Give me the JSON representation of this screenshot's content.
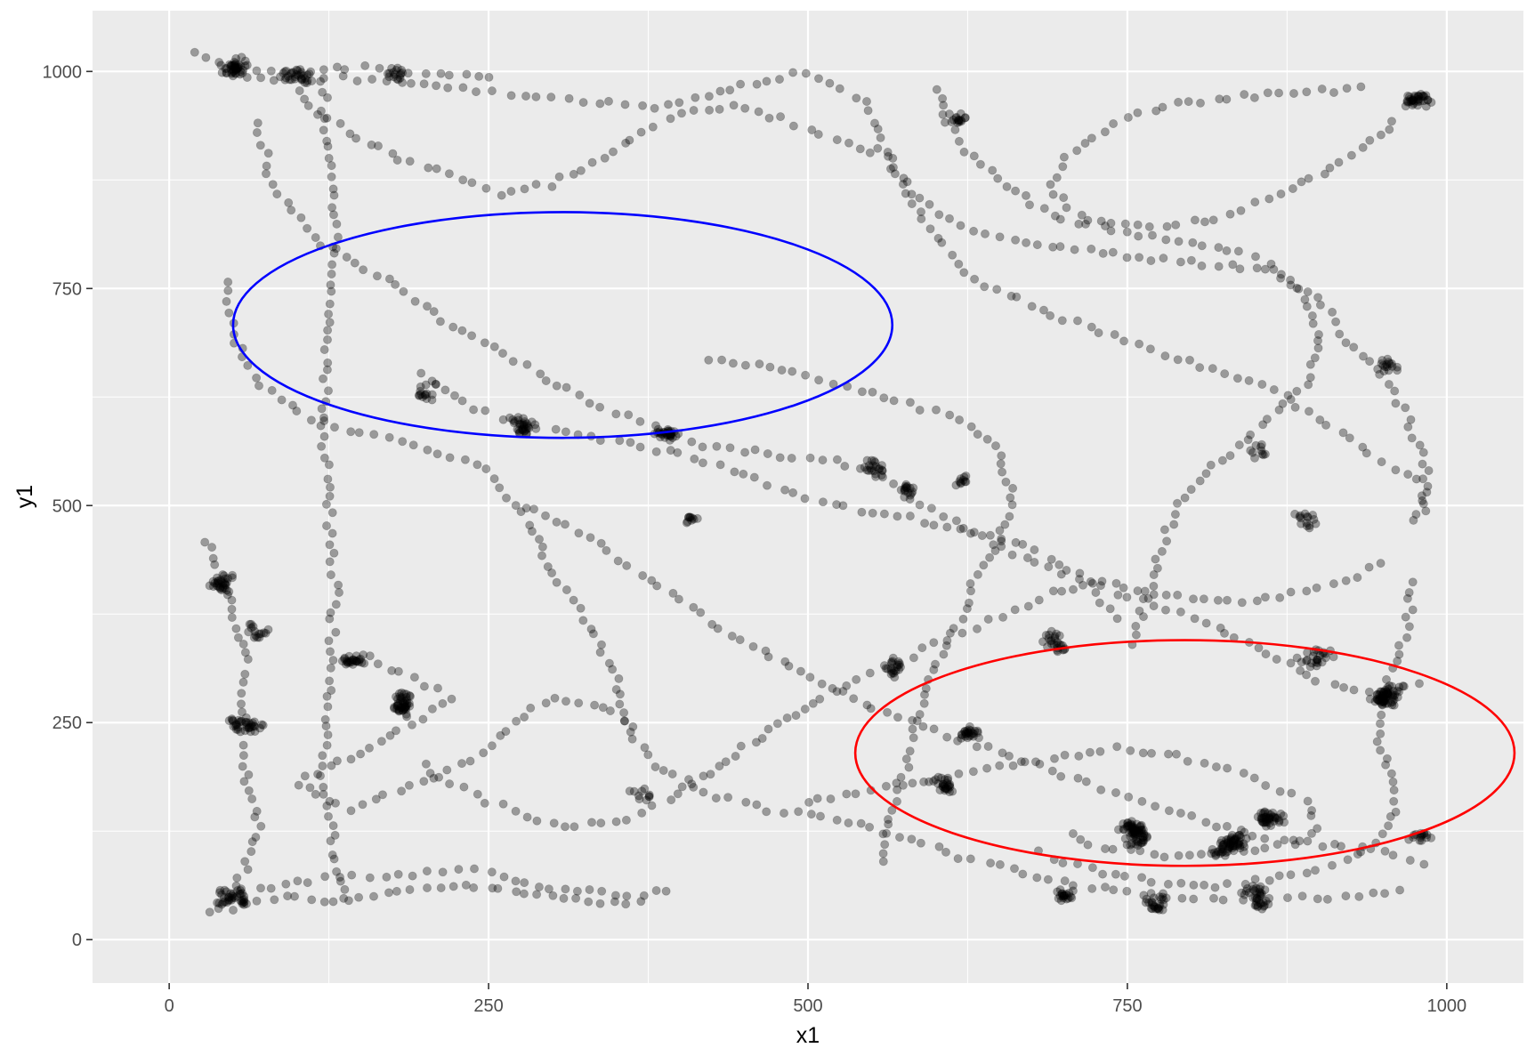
{
  "chart_data": {
    "type": "scatter",
    "title": "",
    "xlabel": "x1",
    "ylabel": "y1",
    "xlim": [
      -60,
      1060
    ],
    "ylim": [
      -50,
      1070
    ],
    "xticks": [
      0,
      250,
      500,
      750,
      1000
    ],
    "yticks": [
      0,
      250,
      500,
      750,
      1000
    ],
    "xtick_labels": [
      "0",
      "250",
      "500",
      "750",
      "1000"
    ],
    "ytick_labels": [
      "0",
      "250",
      "500",
      "750",
      "1000"
    ],
    "grid": true,
    "legend": "none",
    "colors": {
      "panel_bg": "#ebebeb",
      "grid": "#ffffff",
      "points": "#000000",
      "ellipse_1": "#0000ff",
      "ellipse_2": "#ff0000"
    },
    "point_alpha": 0.35,
    "annotations": [
      {
        "shape": "ellipse",
        "color": "blue",
        "cx": 308,
        "cy": 708,
        "rx": 258,
        "ry": 130
      },
      {
        "shape": "ellipse",
        "color": "red",
        "cx": 795,
        "cy": 215,
        "rx": 258,
        "ry": 130
      }
    ],
    "path_waypoints": [
      [
        [
          20,
          1020
        ],
        [
          60,
          1005
        ],
        [
          110,
          995
        ],
        [
          170,
          990
        ],
        [
          230,
          980
        ],
        [
          300,
          970
        ],
        [
          380,
          960
        ],
        [
          450,
          985
        ],
        [
          500,
          1000
        ],
        [
          545,
          965
        ],
        [
          560,
          900
        ],
        [
          590,
          830
        ],
        [
          630,
          760
        ],
        [
          700,
          715
        ],
        [
          790,
          670
        ],
        [
          855,
          640
        ],
        [
          900,
          600
        ],
        [
          940,
          560
        ],
        [
          985,
          520
        ],
        [
          970,
          470
        ]
      ],
      [
        [
          70,
          940
        ],
        [
          80,
          870
        ],
        [
          120,
          800
        ],
        [
          170,
          760
        ],
        [
          230,
          700
        ],
        [
          280,
          660
        ],
        [
          330,
          620
        ],
        [
          380,
          590
        ],
        [
          420,
          570
        ],
        [
          470,
          560
        ],
        [
          520,
          550
        ],
        [
          560,
          530
        ],
        [
          590,
          500
        ],
        [
          630,
          470
        ],
        [
          670,
          440
        ],
        [
          700,
          420
        ],
        [
          740,
          400
        ],
        [
          780,
          380
        ],
        [
          820,
          360
        ],
        [
          860,
          330
        ],
        [
          900,
          300
        ],
        [
          950,
          280
        ],
        [
          985,
          300
        ]
      ],
      [
        [
          120,
          990
        ],
        [
          125,
          900
        ],
        [
          130,
          800
        ],
        [
          125,
          700
        ],
        [
          120,
          600
        ],
        [
          125,
          500
        ],
        [
          130,
          400
        ],
        [
          125,
          300
        ],
        [
          120,
          200
        ],
        [
          130,
          100
        ],
        [
          140,
          40
        ]
      ],
      [
        [
          45,
          760
        ],
        [
          50,
          700
        ],
        [
          70,
          640
        ],
        [
          110,
          600
        ],
        [
          160,
          580
        ],
        [
          210,
          560
        ],
        [
          250,
          540
        ],
        [
          280,
          480
        ],
        [
          300,
          420
        ],
        [
          330,
          360
        ],
        [
          350,
          300
        ],
        [
          360,
          240
        ],
        [
          380,
          200
        ],
        [
          420,
          170
        ],
        [
          470,
          150
        ],
        [
          520,
          140
        ],
        [
          570,
          120
        ],
        [
          610,
          100
        ],
        [
          660,
          80
        ],
        [
          720,
          60
        ],
        [
          780,
          50
        ],
        [
          850,
          45
        ],
        [
          920,
          50
        ],
        [
          975,
          60
        ]
      ],
      [
        [
          30,
          460
        ],
        [
          40,
          420
        ],
        [
          50,
          380
        ],
        [
          60,
          320
        ],
        [
          55,
          250
        ],
        [
          60,
          190
        ],
        [
          70,
          130
        ],
        [
          60,
          80
        ],
        [
          40,
          40
        ],
        [
          70,
          60
        ],
        [
          120,
          70
        ],
        [
          180,
          75
        ],
        [
          240,
          80
        ],
        [
          300,
          60
        ],
        [
          360,
          50
        ],
        [
          400,
          60
        ]
      ],
      [
        [
          150,
          330
        ],
        [
          190,
          300
        ],
        [
          220,
          280
        ],
        [
          180,
          240
        ],
        [
          140,
          210
        ],
        [
          100,
          180
        ],
        [
          140,
          150
        ],
        [
          180,
          170
        ],
        [
          230,
          200
        ],
        [
          270,
          250
        ],
        [
          300,
          280
        ],
        [
          340,
          270
        ],
        [
          370,
          240
        ]
      ],
      [
        [
          560,
          910
        ],
        [
          580,
          860
        ],
        [
          620,
          820
        ],
        [
          680,
          800
        ],
        [
          740,
          790
        ],
        [
          800,
          780
        ],
        [
          860,
          770
        ],
        [
          900,
          740
        ],
        [
          920,
          690
        ],
        [
          950,
          650
        ],
        [
          970,
          600
        ],
        [
          985,
          540
        ],
        [
          980,
          480
        ]
      ],
      [
        [
          930,
          980
        ],
        [
          880,
          975
        ],
        [
          830,
          970
        ],
        [
          780,
          960
        ],
        [
          740,
          940
        ],
        [
          700,
          900
        ],
        [
          690,
          860
        ],
        [
          720,
          830
        ],
        [
          770,
          820
        ],
        [
          820,
          830
        ],
        [
          870,
          860
        ],
        [
          910,
          890
        ],
        [
          940,
          920
        ],
        [
          965,
          950
        ]
      ],
      [
        [
          420,
          670
        ],
        [
          470,
          660
        ],
        [
          520,
          640
        ],
        [
          570,
          620
        ],
        [
          620,
          600
        ],
        [
          650,
          560
        ],
        [
          660,
          510
        ],
        [
          650,
          460
        ],
        [
          630,
          420
        ],
        [
          620,
          370
        ],
        [
          600,
          320
        ],
        [
          590,
          270
        ],
        [
          580,
          220
        ],
        [
          570,
          170
        ],
        [
          560,
          120
        ],
        [
          555,
          80
        ]
      ],
      [
        [
          280,
          500
        ],
        [
          320,
          470
        ],
        [
          360,
          430
        ],
        [
          400,
          390
        ],
        [
          440,
          350
        ],
        [
          480,
          320
        ],
        [
          520,
          290
        ],
        [
          560,
          260
        ],
        [
          600,
          240
        ],
        [
          640,
          220
        ],
        [
          680,
          200
        ],
        [
          720,
          180
        ],
        [
          760,
          160
        ],
        [
          800,
          140
        ],
        [
          850,
          120
        ],
        [
          900,
          110
        ],
        [
          950,
          100
        ],
        [
          990,
          80
        ]
      ],
      [
        [
          600,
          980
        ],
        [
          610,
          940
        ],
        [
          630,
          900
        ],
        [
          660,
          860
        ],
        [
          700,
          830
        ],
        [
          760,
          810
        ],
        [
          820,
          800
        ],
        [
          860,
          780
        ],
        [
          890,
          740
        ],
        [
          900,
          690
        ],
        [
          890,
          640
        ],
        [
          860,
          600
        ],
        [
          830,
          560
        ],
        [
          800,
          520
        ],
        [
          780,
          470
        ],
        [
          770,
          420
        ],
        [
          760,
          370
        ],
        [
          750,
          330
        ]
      ],
      [
        [
          40,
          1000
        ],
        [
          80,
          990
        ],
        [
          140,
          1005
        ],
        [
          200,
          1000
        ],
        [
          260,
          990
        ]
      ],
      [
        [
          500,
          160
        ],
        [
          540,
          170
        ],
        [
          580,
          180
        ],
        [
          620,
          190
        ],
        [
          660,
          200
        ],
        [
          700,
          210
        ],
        [
          740,
          220
        ],
        [
          780,
          215
        ],
        [
          820,
          200
        ],
        [
          860,
          180
        ],
        [
          890,
          160
        ],
        [
          900,
          130
        ],
        [
          880,
          110
        ],
        [
          840,
          100
        ],
        [
          800,
          95
        ],
        [
          760,
          100
        ],
        [
          720,
          110
        ],
        [
          700,
          130
        ]
      ],
      [
        [
          680,
          100
        ],
        [
          720,
          80
        ],
        [
          760,
          70
        ],
        [
          800,
          60
        ],
        [
          840,
          65
        ],
        [
          880,
          75
        ],
        [
          920,
          90
        ],
        [
          950,
          120
        ],
        [
          960,
          160
        ],
        [
          955,
          200
        ],
        [
          945,
          240
        ],
        [
          950,
          280
        ],
        [
          960,
          320
        ],
        [
          970,
          370
        ],
        [
          975,
          420
        ]
      ],
      [
        [
          30,
          30
        ],
        [
          60,
          40
        ],
        [
          90,
          50
        ],
        [
          130,
          45
        ],
        [
          170,
          55
        ],
        [
          210,
          60
        ],
        [
          260,
          60
        ],
        [
          300,
          50
        ],
        [
          340,
          40
        ],
        [
          380,
          45
        ]
      ],
      [
        [
          200,
          200
        ],
        [
          220,
          180
        ],
        [
          250,
          160
        ],
        [
          280,
          140
        ],
        [
          320,
          130
        ],
        [
          360,
          140
        ],
        [
          390,
          160
        ],
        [
          410,
          180
        ],
        [
          430,
          200
        ],
        [
          450,
          220
        ],
        [
          470,
          240
        ],
        [
          490,
          260
        ],
        [
          510,
          280
        ],
        [
          540,
          300
        ],
        [
          570,
          320
        ],
        [
          600,
          340
        ],
        [
          630,
          360
        ],
        [
          660,
          380
        ],
        [
          690,
          400
        ],
        [
          730,
          410
        ],
        [
          770,
          400
        ],
        [
          810,
          390
        ],
        [
          850,
          390
        ],
        [
          890,
          400
        ],
        [
          930,
          420
        ],
        [
          960,
          440
        ]
      ],
      [
        [
          100,
          1000
        ],
        [
          110,
          960
        ],
        [
          140,
          930
        ],
        [
          180,
          900
        ],
        [
          220,
          880
        ],
        [
          260,
          860
        ],
        [
          300,
          870
        ],
        [
          340,
          900
        ],
        [
          370,
          930
        ],
        [
          400,
          950
        ],
        [
          440,
          960
        ],
        [
          480,
          945
        ],
        [
          520,
          920
        ],
        [
          560,
          900
        ]
      ],
      [
        [
          200,
          650
        ],
        [
          230,
          620
        ],
        [
          260,
          600
        ],
        [
          290,
          590
        ],
        [
          320,
          580
        ],
        [
          360,
          570
        ],
        [
          400,
          560
        ],
        [
          440,
          540
        ],
        [
          480,
          520
        ],
        [
          520,
          500
        ],
        [
          560,
          490
        ],
        [
          600,
          480
        ],
        [
          630,
          470
        ],
        [
          660,
          460
        ],
        [
          690,
          440
        ],
        [
          710,
          420
        ],
        [
          730,
          390
        ],
        [
          750,
          360
        ]
      ]
    ],
    "clusters": [
      {
        "x": 50,
        "y": 1005,
        "n": 40
      },
      {
        "x": 100,
        "y": 995,
        "n": 25
      },
      {
        "x": 175,
        "y": 995,
        "n": 15
      },
      {
        "x": 40,
        "y": 410,
        "n": 30
      },
      {
        "x": 55,
        "y": 250,
        "n": 35
      },
      {
        "x": 70,
        "y": 355,
        "n": 15
      },
      {
        "x": 145,
        "y": 320,
        "n": 25
      },
      {
        "x": 190,
        "y": 275,
        "n": 45
      },
      {
        "x": 50,
        "y": 50,
        "n": 35
      },
      {
        "x": 280,
        "y": 590,
        "n": 30
      },
      {
        "x": 390,
        "y": 585,
        "n": 30
      },
      {
        "x": 210,
        "y": 640,
        "n": 15
      },
      {
        "x": 400,
        "y": 485,
        "n": 10
      },
      {
        "x": 555,
        "y": 545,
        "n": 20
      },
      {
        "x": 580,
        "y": 520,
        "n": 15
      },
      {
        "x": 690,
        "y": 345,
        "n": 25
      },
      {
        "x": 620,
        "y": 530,
        "n": 10
      },
      {
        "x": 850,
        "y": 565,
        "n": 10
      },
      {
        "x": 760,
        "y": 120,
        "n": 70
      },
      {
        "x": 830,
        "y": 110,
        "n": 60
      },
      {
        "x": 860,
        "y": 140,
        "n": 40
      },
      {
        "x": 900,
        "y": 320,
        "n": 25
      },
      {
        "x": 950,
        "y": 280,
        "n": 60
      },
      {
        "x": 975,
        "y": 970,
        "n": 35
      },
      {
        "x": 960,
        "y": 660,
        "n": 15
      },
      {
        "x": 600,
        "y": 180,
        "n": 25
      },
      {
        "x": 850,
        "y": 45,
        "n": 35
      },
      {
        "x": 780,
        "y": 45,
        "n": 25
      },
      {
        "x": 700,
        "y": 50,
        "n": 20
      },
      {
        "x": 630,
        "y": 240,
        "n": 25
      },
      {
        "x": 570,
        "y": 310,
        "n": 20
      },
      {
        "x": 890,
        "y": 490,
        "n": 15
      },
      {
        "x": 370,
        "y": 170,
        "n": 10
      },
      {
        "x": 610,
        "y": 945,
        "n": 15
      },
      {
        "x": 980,
        "y": 120,
        "n": 15
      }
    ]
  }
}
